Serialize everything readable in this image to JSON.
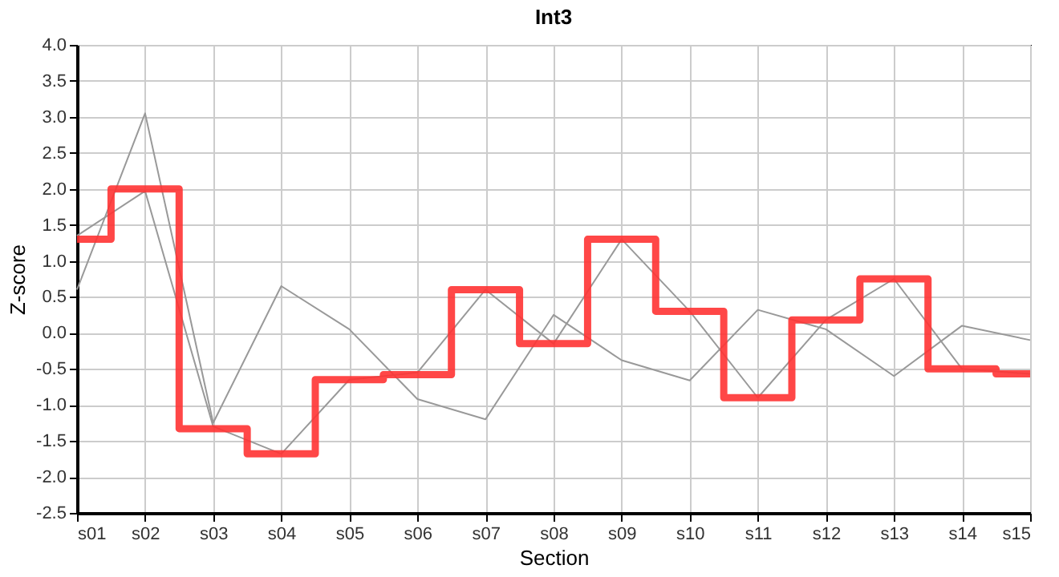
{
  "chart_data": {
    "type": "line",
    "title": "Int3",
    "xlabel": "Section",
    "ylabel": "Z-score",
    "categories": [
      "s01",
      "s02",
      "s03",
      "s04",
      "s05",
      "s06",
      "s07",
      "s08",
      "s09",
      "s10",
      "s11",
      "s12",
      "s13",
      "s14",
      "s15"
    ],
    "series": [
      {
        "color": "#999999",
        "values": [
          0.6,
          3.05,
          -1.25,
          0.65,
          0.05,
          -0.92,
          -1.2,
          0.25,
          -0.38,
          -0.66,
          0.32,
          0.05,
          -0.6,
          0.1,
          -0.1
        ]
      },
      {
        "color": "#999999",
        "values": [
          1.35,
          1.97,
          -1.3,
          -1.68,
          -0.65,
          -0.55,
          0.6,
          -0.15,
          1.3,
          0.3,
          -0.9,
          0.18,
          0.75,
          -0.5,
          -0.57
        ]
      },
      {
        "type": "step",
        "color": "#ff3333",
        "values": [
          1.3,
          2.0,
          -1.33,
          -1.68,
          -0.65,
          -0.58,
          0.6,
          -0.15,
          1.3,
          0.3,
          -0.9,
          0.18,
          0.75,
          -0.5,
          -0.57
        ]
      }
    ],
    "ylim": [
      -2.5,
      4.0
    ],
    "yticks": [
      {
        "value": -2.5,
        "label": "-2.5"
      },
      {
        "value": -2,
        "label": "-2.0"
      },
      {
        "value": -1.5,
        "label": "-1.5"
      },
      {
        "value": -1,
        "label": "-1.0"
      },
      {
        "value": -0.5,
        "label": "-0.5"
      },
      {
        "value": 0,
        "label": "0.0"
      },
      {
        "value": 0.5,
        "label": "0.5"
      },
      {
        "value": 1,
        "label": "1.0"
      },
      {
        "value": 1.5,
        "label": "1.5"
      },
      {
        "value": 2,
        "label": "2.0"
      },
      {
        "value": 2.5,
        "label": "2.5"
      },
      {
        "value": 3,
        "label": "3.0"
      },
      {
        "value": 3.5,
        "label": "3.5"
      },
      {
        "value": 4,
        "label": "4.0"
      }
    ],
    "grid": true
  }
}
